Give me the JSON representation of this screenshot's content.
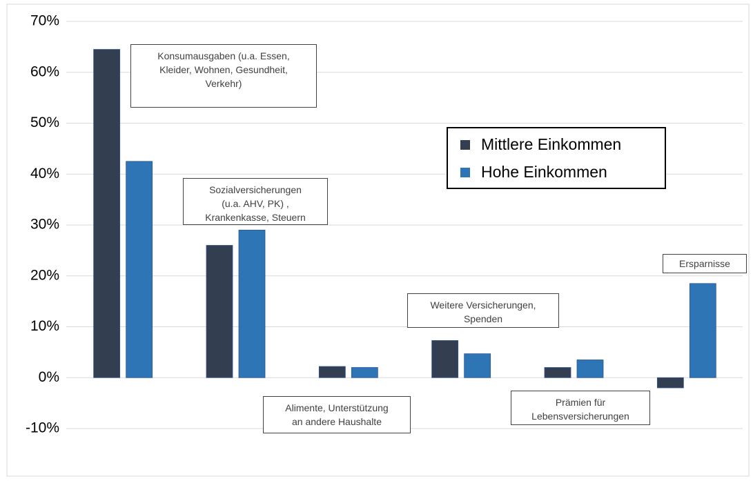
{
  "chart_data": {
    "type": "bar",
    "categories": [
      "Konsumausgaben (u.a. Essen,\nKleider, Wohnen, Gesundheit,\nVerkehr)",
      "Sozialversicherungen\n(u.a. AHV, PK) ,\nKrankenkasse, Steuern",
      "Alimente, Unterstützung\nan andere Haushalte",
      "Weitere Versicherungen,\nSpenden",
      "Prämien für\nLebensversicherungen",
      "Ersparnisse"
    ],
    "series": [
      {
        "name": "Mittlere Einkommen",
        "color": "#333f50",
        "values": [
          64.5,
          26,
          2.2,
          7.3,
          2.0,
          -2.0
        ]
      },
      {
        "name": "Hohe Einkommen",
        "color": "#2e75b6",
        "values": [
          42.5,
          29,
          2.0,
          4.7,
          3.5,
          18.5
        ]
      }
    ],
    "ylim": [
      -10,
      70
    ],
    "yticks": [
      {
        "value": -10,
        "label": "-10%"
      },
      {
        "value": 0,
        "label": "0%"
      },
      {
        "value": 10,
        "label": "10%"
      },
      {
        "value": 20,
        "label": "20%"
      },
      {
        "value": 30,
        "label": "30%"
      },
      {
        "value": 40,
        "label": "40%"
      },
      {
        "value": 50,
        "label": "50%"
      },
      {
        "value": 60,
        "label": "60%"
      },
      {
        "value": 70,
        "label": "70%"
      }
    ],
    "grid": true
  }
}
